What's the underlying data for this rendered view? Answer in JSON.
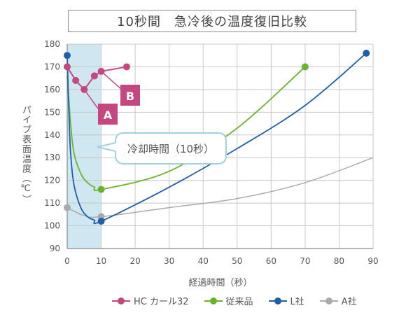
{
  "chart_data": {
    "type": "line",
    "title": "10秒間　急冷後の温度復旧比較",
    "xlabel": "経過時間（秒）",
    "ylabel": "パイプ表面温度（℃）",
    "xlim": [
      0,
      90
    ],
    "ylim": [
      90,
      180
    ],
    "xticks": [
      "0",
      "10",
      "20",
      "30",
      "40",
      "50",
      "60",
      "70",
      "80",
      "90"
    ],
    "yticks": [
      "90",
      "100",
      "110",
      "120",
      "130",
      "140",
      "150",
      "160",
      "170",
      "180"
    ],
    "shaded_region": {
      "x": [
        0,
        10
      ],
      "label": "冷却時間（10秒）"
    },
    "annotations": [
      "A",
      "B"
    ],
    "series": [
      {
        "name": "HC カール32",
        "color": "#c5477f",
        "x": [
          0,
          2.5,
          5,
          8,
          10,
          17.5
        ],
        "y": [
          170,
          164,
          160,
          166,
          168,
          170
        ]
      },
      {
        "name": "従来品",
        "color": "#6ab42d",
        "x": [
          0,
          1,
          2,
          4,
          6,
          8,
          10,
          30,
          50,
          70
        ],
        "y": [
          166,
          145,
          132,
          123,
          119,
          117,
          116,
          124,
          143,
          170
        ],
        "markers_at": [
          10,
          70
        ]
      },
      {
        "name": "L社",
        "color": "#1f5fa8",
        "x": [
          0,
          0.5,
          1,
          2,
          4,
          6,
          8,
          10,
          30,
          50,
          70,
          88
        ],
        "y": [
          175,
          150,
          132,
          118,
          108,
          104,
          102.5,
          102,
          117,
          134,
          153,
          176
        ],
        "markers_at": [
          0,
          10,
          88
        ]
      },
      {
        "name": "A社",
        "color": "#aaaaaa",
        "x": [
          0,
          5,
          10,
          30,
          50,
          70,
          90
        ],
        "y": [
          108,
          104.5,
          104,
          108,
          112,
          119,
          130
        ],
        "markers_at": [
          0,
          10
        ]
      }
    ]
  },
  "legend": [
    {
      "label": "HC カール32",
      "color": "#c5477f"
    },
    {
      "label": "従来品",
      "color": "#6ab42d"
    },
    {
      "label": "L社",
      "color": "#1f5fa8"
    },
    {
      "label": "A社",
      "color": "#aaaaaa"
    }
  ]
}
